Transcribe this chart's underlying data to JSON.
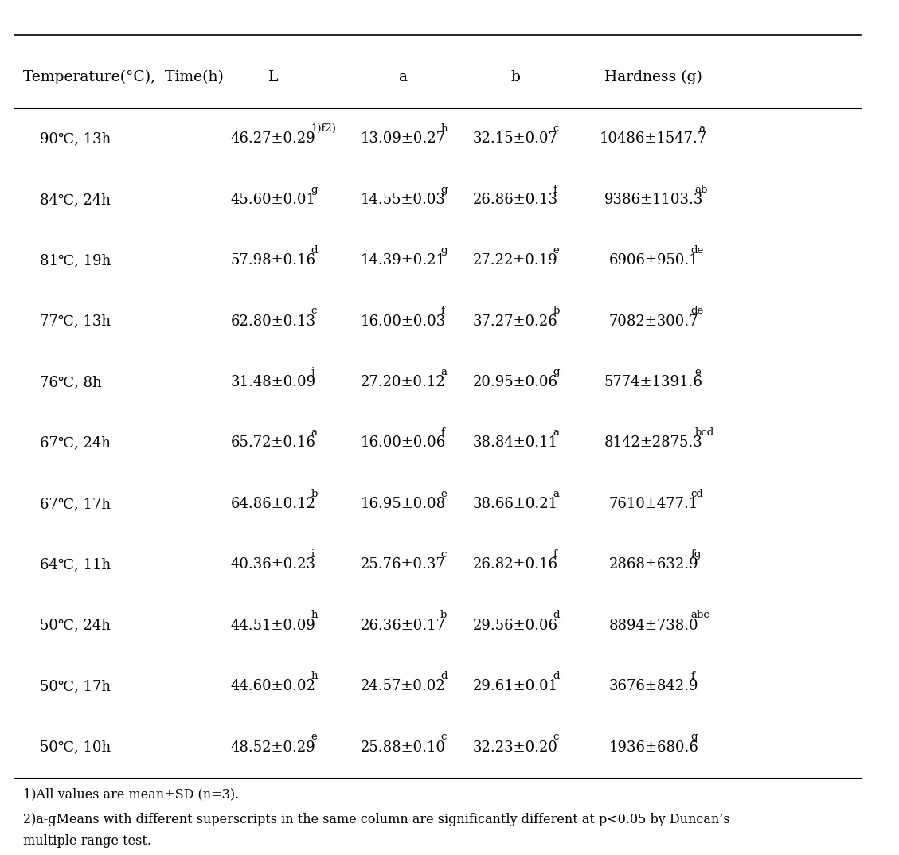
{
  "headers": [
    "Temperature(°C),  Time(h)",
    "L",
    "a",
    "b",
    "Hardness (g)"
  ],
  "rows": [
    [
      "90℃, 13h",
      "46.27±0.29",
      "1)f2)",
      "13.09±0.27",
      "h",
      "32.15±0.07",
      "c",
      "10486±1547.7",
      "a"
    ],
    [
      "84℃, 24h",
      "45.60±0.01",
      "g",
      "14.55±0.03",
      "g",
      "26.86±0.13",
      "f",
      "9386±1103.3",
      "ab"
    ],
    [
      "81℃, 19h",
      "57.98±0.16",
      "d",
      "14.39±0.21",
      "g",
      "27.22±0.19",
      "e",
      "6906±950.1",
      "de"
    ],
    [
      "77℃, 13h",
      "62.80±0.13",
      "c",
      "16.00±0.03",
      "f",
      "37.27±0.26",
      "b",
      "7082±300.7",
      "de"
    ],
    [
      "76℃, 8h",
      "31.48±0.09",
      "j",
      "27.20±0.12",
      "a",
      "20.95±0.06",
      "g",
      "5774±1391.6",
      "e"
    ],
    [
      "67℃, 24h",
      "65.72±0.16",
      "a",
      "16.00±0.06",
      "f",
      "38.84±0.11",
      "a",
      "8142±2875.3",
      "bcd"
    ],
    [
      "67℃, 17h",
      "64.86±0.12",
      "b",
      "16.95±0.08",
      "e",
      "38.66±0.21",
      "a",
      "7610±477.1",
      "cd"
    ],
    [
      "64℃, 11h",
      "40.36±0.23",
      "i",
      "25.76±0.37",
      "c",
      "26.82±0.16",
      "f",
      "2868±632.9",
      "fg"
    ],
    [
      "50℃, 24h",
      "44.51±0.09",
      "h",
      "26.36±0.17",
      "b",
      "29.56±0.06",
      "d",
      "8894±738.0",
      "abc"
    ],
    [
      "50℃, 17h",
      "44.60±0.02",
      "h",
      "24.57±0.02",
      "d",
      "29.61±0.01",
      "d",
      "3676±842.9",
      "f"
    ],
    [
      "50℃, 10h",
      "48.52±0.29",
      "e",
      "25.88±0.10",
      "c",
      "32.23±0.20",
      "c",
      "1936±680.6",
      "g"
    ]
  ],
  "footnote1": "1)All values are mean±SD (n=3).",
  "footnote2": "2)a-gMeans with different superscripts in the same column are significantly different at p<0.05 by Duncan's\nmultiple range test.",
  "background_color": "#ffffff",
  "text_color": "#000000",
  "font_size": 13,
  "header_font_size": 13.5
}
